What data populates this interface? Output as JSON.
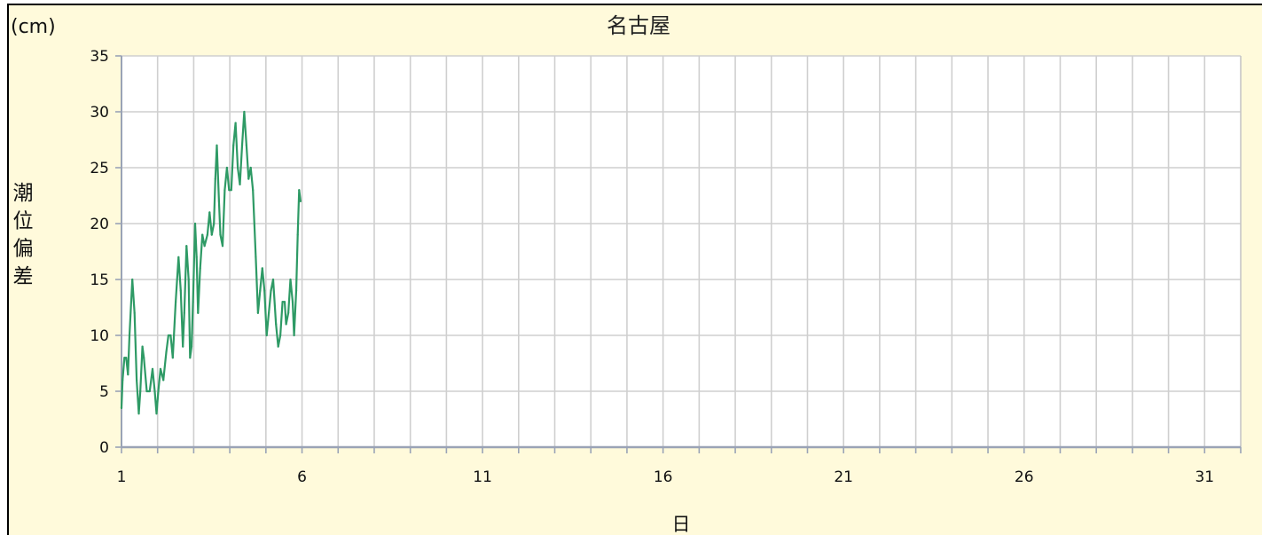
{
  "chart_data": {
    "type": "line",
    "title": "名古屋",
    "unit_label": "(cm)",
    "ylabel": "潮位偏差",
    "xlabel": "日",
    "xlim": [
      1,
      32
    ],
    "ylim": [
      0,
      35
    ],
    "x_ticks": [
      1,
      6,
      11,
      16,
      21,
      26,
      31
    ],
    "y_ticks": [
      0,
      5,
      10,
      15,
      20,
      25,
      30,
      35
    ],
    "grid": true,
    "series": [
      {
        "color": "#2e9a65",
        "points": [
          [
            1.0,
            3.5
          ],
          [
            1.03,
            6.0
          ],
          [
            1.08,
            8.0
          ],
          [
            1.13,
            8.0
          ],
          [
            1.18,
            6.5
          ],
          [
            1.22,
            10.0
          ],
          [
            1.3,
            15.0
          ],
          [
            1.36,
            12.0
          ],
          [
            1.42,
            6.0
          ],
          [
            1.48,
            3.0
          ],
          [
            1.52,
            5.0
          ],
          [
            1.58,
            9.0
          ],
          [
            1.62,
            8.0
          ],
          [
            1.7,
            5.0
          ],
          [
            1.78,
            5.0
          ],
          [
            1.86,
            7.0
          ],
          [
            1.92,
            5.0
          ],
          [
            1.97,
            3.0
          ],
          [
            2.02,
            5.0
          ],
          [
            2.08,
            7.0
          ],
          [
            2.16,
            6.0
          ],
          [
            2.24,
            8.5
          ],
          [
            2.3,
            10.0
          ],
          [
            2.36,
            10.0
          ],
          [
            2.42,
            8.0
          ],
          [
            2.5,
            13.0
          ],
          [
            2.58,
            17.0
          ],
          [
            2.64,
            14.0
          ],
          [
            2.7,
            9.0
          ],
          [
            2.74,
            12.0
          ],
          [
            2.8,
            18.0
          ],
          [
            2.86,
            15.0
          ],
          [
            2.9,
            8.0
          ],
          [
            2.94,
            9.0
          ],
          [
            2.98,
            13.0
          ],
          [
            3.04,
            20.0
          ],
          [
            3.08,
            17.0
          ],
          [
            3.12,
            12.0
          ],
          [
            3.18,
            16.0
          ],
          [
            3.24,
            19.0
          ],
          [
            3.3,
            18.0
          ],
          [
            3.38,
            19.0
          ],
          [
            3.44,
            21.0
          ],
          [
            3.5,
            19.0
          ],
          [
            3.56,
            20.0
          ],
          [
            3.6,
            24.0
          ],
          [
            3.64,
            27.0
          ],
          [
            3.7,
            22.0
          ],
          [
            3.74,
            19.0
          ],
          [
            3.8,
            18.0
          ],
          [
            3.86,
            23.0
          ],
          [
            3.92,
            25.0
          ],
          [
            3.98,
            23.0
          ],
          [
            4.04,
            23.0
          ],
          [
            4.1,
            27.0
          ],
          [
            4.16,
            29.0
          ],
          [
            4.22,
            25.0
          ],
          [
            4.28,
            23.5
          ],
          [
            4.34,
            27.0
          ],
          [
            4.4,
            30.0
          ],
          [
            4.46,
            27.0
          ],
          [
            4.52,
            24.0
          ],
          [
            4.58,
            25.0
          ],
          [
            4.64,
            23.0
          ],
          [
            4.72,
            17.0
          ],
          [
            4.78,
            12.0
          ],
          [
            4.84,
            14.0
          ],
          [
            4.9,
            16.0
          ],
          [
            4.96,
            14.0
          ],
          [
            5.02,
            10.0
          ],
          [
            5.08,
            12.0
          ],
          [
            5.14,
            14.0
          ],
          [
            5.2,
            15.0
          ],
          [
            5.28,
            11.0
          ],
          [
            5.34,
            9.0
          ],
          [
            5.4,
            10.0
          ],
          [
            5.46,
            13.0
          ],
          [
            5.52,
            13.0
          ],
          [
            5.56,
            11.0
          ],
          [
            5.62,
            12.0
          ],
          [
            5.68,
            15.0
          ],
          [
            5.74,
            13.0
          ],
          [
            5.78,
            10.0
          ],
          [
            5.84,
            14.0
          ],
          [
            5.88,
            19.0
          ],
          [
            5.92,
            23.0
          ],
          [
            5.96,
            22.0
          ]
        ]
      }
    ]
  }
}
